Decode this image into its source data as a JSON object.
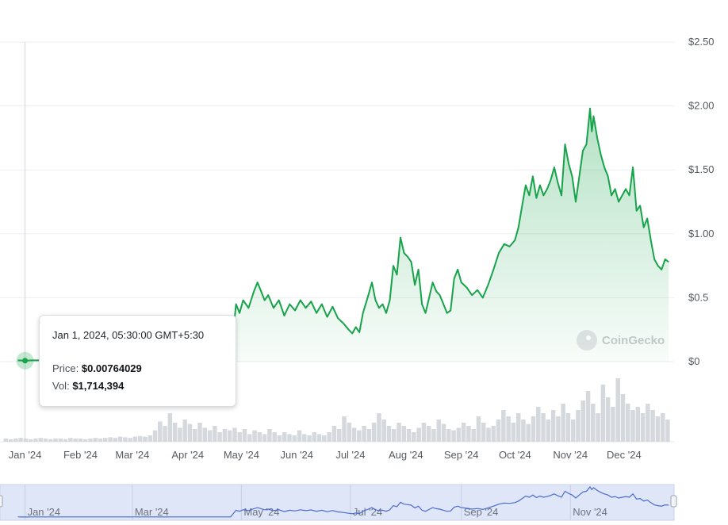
{
  "chart_data": {
    "type": "area",
    "title": "",
    "xlabel": "",
    "ylabel": "",
    "x_ticks": [
      "Jan '24",
      "Feb '24",
      "Mar '24",
      "Apr '24",
      "May '24",
      "Jun '24",
      "Jul '24",
      "Aug '24",
      "Sep '24",
      "Oct '24",
      "Nov '24",
      "Dec '24"
    ],
    "y_ticks": [
      "$0",
      "$0.5",
      "$1.00",
      "$1.50",
      "$2.00",
      "$2.50"
    ],
    "ylim": [
      0,
      2.5
    ],
    "grid": true,
    "price_color": "#16a34a",
    "volume_color": "#d5d8dd",
    "navigator_color": "#4b6cd0",
    "series": [
      {
        "values": [
          [
            "2023-12-28",
            0.01
          ],
          [
            "2024-01-01",
            0.0076
          ],
          [
            "2024-01-05",
            0.01
          ],
          [
            "2024-01-20",
            0.01
          ],
          [
            "2024-02-10",
            0.01
          ],
          [
            "2024-03-01",
            0.01
          ],
          [
            "2024-03-20",
            0.01
          ],
          [
            "2024-04-10",
            0.01
          ],
          [
            "2024-04-25",
            0.01
          ],
          [
            "2024-04-28",
            0.45
          ],
          [
            "2024-04-30",
            0.38
          ],
          [
            "2024-05-02",
            0.48
          ],
          [
            "2024-05-05",
            0.42
          ],
          [
            "2024-05-08",
            0.55
          ],
          [
            "2024-05-10",
            0.62
          ],
          [
            "2024-05-12",
            0.55
          ],
          [
            "2024-05-14",
            0.48
          ],
          [
            "2024-05-16",
            0.52
          ],
          [
            "2024-05-19",
            0.42
          ],
          [
            "2024-05-22",
            0.48
          ],
          [
            "2024-05-25",
            0.36
          ],
          [
            "2024-05-28",
            0.45
          ],
          [
            "2024-05-31",
            0.4
          ],
          [
            "2024-06-03",
            0.48
          ],
          [
            "2024-06-06",
            0.42
          ],
          [
            "2024-06-09",
            0.47
          ],
          [
            "2024-06-12",
            0.38
          ],
          [
            "2024-06-15",
            0.45
          ],
          [
            "2024-06-18",
            0.35
          ],
          [
            "2024-06-21",
            0.43
          ],
          [
            "2024-06-24",
            0.34
          ],
          [
            "2024-06-27",
            0.3
          ],
          [
            "2024-06-30",
            0.25
          ],
          [
            "2024-07-02",
            0.22
          ],
          [
            "2024-07-04",
            0.27
          ],
          [
            "2024-07-06",
            0.23
          ],
          [
            "2024-07-08",
            0.38
          ],
          [
            "2024-07-11",
            0.52
          ],
          [
            "2024-07-13",
            0.62
          ],
          [
            "2024-07-15",
            0.48
          ],
          [
            "2024-07-17",
            0.42
          ],
          [
            "2024-07-19",
            0.45
          ],
          [
            "2024-07-21",
            0.38
          ],
          [
            "2024-07-23",
            0.48
          ],
          [
            "2024-07-25",
            0.75
          ],
          [
            "2024-07-27",
            0.68
          ],
          [
            "2024-07-29",
            0.97
          ],
          [
            "2024-07-31",
            0.85
          ],
          [
            "2024-08-02",
            0.82
          ],
          [
            "2024-08-04",
            0.78
          ],
          [
            "2024-08-06",
            0.6
          ],
          [
            "2024-08-08",
            0.72
          ],
          [
            "2024-08-10",
            0.45
          ],
          [
            "2024-08-12",
            0.38
          ],
          [
            "2024-08-14",
            0.5
          ],
          [
            "2024-08-16",
            0.62
          ],
          [
            "2024-08-18",
            0.55
          ],
          [
            "2024-08-20",
            0.52
          ],
          [
            "2024-08-22",
            0.45
          ],
          [
            "2024-08-24",
            0.38
          ],
          [
            "2024-08-26",
            0.4
          ],
          [
            "2024-08-28",
            0.65
          ],
          [
            "2024-08-30",
            0.72
          ],
          [
            "2024-09-01",
            0.62
          ],
          [
            "2024-09-04",
            0.58
          ],
          [
            "2024-09-07",
            0.52
          ],
          [
            "2024-09-10",
            0.56
          ],
          [
            "2024-09-13",
            0.5
          ],
          [
            "2024-09-16",
            0.6
          ],
          [
            "2024-09-19",
            0.72
          ],
          [
            "2024-09-22",
            0.85
          ],
          [
            "2024-09-25",
            0.92
          ],
          [
            "2024-09-28",
            0.9
          ],
          [
            "2024-10-01",
            0.95
          ],
          [
            "2024-10-03",
            1.05
          ],
          [
            "2024-10-05",
            1.22
          ],
          [
            "2024-10-07",
            1.38
          ],
          [
            "2024-10-09",
            1.3
          ],
          [
            "2024-10-11",
            1.45
          ],
          [
            "2024-10-13",
            1.28
          ],
          [
            "2024-10-15",
            1.38
          ],
          [
            "2024-10-17",
            1.3
          ],
          [
            "2024-10-19",
            1.35
          ],
          [
            "2024-10-21",
            1.42
          ],
          [
            "2024-10-23",
            1.52
          ],
          [
            "2024-10-25",
            1.4
          ],
          [
            "2024-10-27",
            1.3
          ],
          [
            "2024-10-29",
            1.7
          ],
          [
            "2024-10-31",
            1.55
          ],
          [
            "2024-11-02",
            1.45
          ],
          [
            "2024-11-04",
            1.25
          ],
          [
            "2024-11-06",
            1.45
          ],
          [
            "2024-11-08",
            1.65
          ],
          [
            "2024-11-10",
            1.7
          ],
          [
            "2024-11-12",
            1.98
          ],
          [
            "2024-11-13",
            1.8
          ],
          [
            "2024-11-14",
            1.92
          ],
          [
            "2024-11-16",
            1.75
          ],
          [
            "2024-11-18",
            1.62
          ],
          [
            "2024-11-20",
            1.52
          ],
          [
            "2024-11-22",
            1.45
          ],
          [
            "2024-11-24",
            1.3
          ],
          [
            "2024-11-26",
            1.35
          ],
          [
            "2024-11-28",
            1.25
          ],
          [
            "2024-11-30",
            1.3
          ],
          [
            "2024-12-02",
            1.35
          ],
          [
            "2024-12-04",
            1.3
          ],
          [
            "2024-12-06",
            1.52
          ],
          [
            "2024-12-08",
            1.18
          ],
          [
            "2024-12-10",
            1.22
          ],
          [
            "2024-12-12",
            1.05
          ],
          [
            "2024-12-14",
            1.12
          ],
          [
            "2024-12-16",
            0.95
          ],
          [
            "2024-12-18",
            0.8
          ],
          [
            "2024-12-20",
            0.75
          ],
          [
            "2024-12-22",
            0.72
          ],
          [
            "2024-12-24",
            0.8
          ],
          [
            "2024-12-26",
            0.78
          ]
        ]
      }
    ],
    "volume_bars": [
      0.05,
      0.04,
      0.05,
      0.06,
      0.05,
      0.04,
      0.05,
      0.06,
      0.05,
      0.04,
      0.05,
      0.05,
      0.04,
      0.06,
      0.05,
      0.05,
      0.04,
      0.05,
      0.06,
      0.05,
      0.06,
      0.07,
      0.06,
      0.08,
      0.07,
      0.06,
      0.08,
      0.09,
      0.08,
      0.1,
      0.18,
      0.32,
      0.25,
      0.45,
      0.3,
      0.22,
      0.35,
      0.28,
      0.2,
      0.3,
      0.22,
      0.18,
      0.25,
      0.15,
      0.2,
      0.18,
      0.22,
      0.15,
      0.2,
      0.12,
      0.18,
      0.15,
      0.12,
      0.2,
      0.15,
      0.1,
      0.15,
      0.12,
      0.1,
      0.18,
      0.12,
      0.1,
      0.15,
      0.12,
      0.1,
      0.15,
      0.25,
      0.2,
      0.4,
      0.3,
      0.22,
      0.18,
      0.25,
      0.2,
      0.3,
      0.45,
      0.35,
      0.25,
      0.2,
      0.3,
      0.25,
      0.2,
      0.15,
      0.22,
      0.3,
      0.25,
      0.2,
      0.35,
      0.28,
      0.2,
      0.18,
      0.22,
      0.3,
      0.25,
      0.2,
      0.4,
      0.3,
      0.22,
      0.25,
      0.35,
      0.5,
      0.4,
      0.3,
      0.45,
      0.35,
      0.28,
      0.4,
      0.55,
      0.45,
      0.35,
      0.5,
      0.4,
      0.6,
      0.45,
      0.35,
      0.5,
      0.65,
      0.8,
      0.6,
      0.45,
      0.9,
      0.7,
      0.55,
      1.0,
      0.75,
      0.6,
      0.5,
      0.55,
      0.45,
      0.6,
      0.5,
      0.4,
      0.45,
      0.35
    ],
    "navigator": {
      "x_ticks": [
        "Jan '24",
        "Mar '24",
        "May '24",
        "Jul '24",
        "Sep '24",
        "Nov '24"
      ]
    },
    "tooltip": {
      "date": "Jan 1, 2024, 05:30:00 GMT+5:30",
      "price_label": "Price:",
      "price_value": "$0.00764029",
      "vol_label": "Vol:",
      "vol_value": "$1,714,394"
    },
    "watermark": "CoinGecko"
  }
}
